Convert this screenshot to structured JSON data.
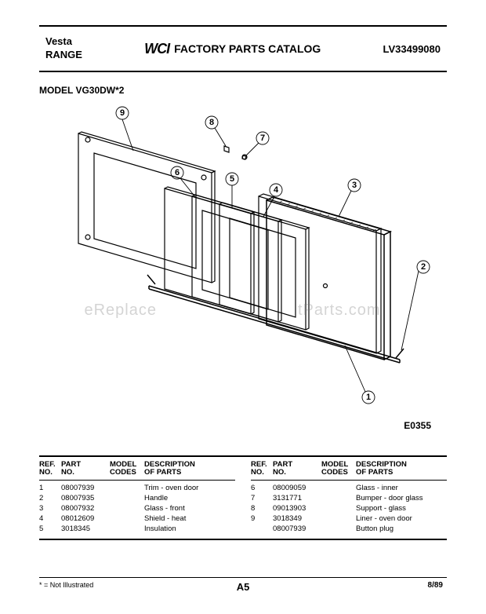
{
  "header": {
    "brand": "Vesta",
    "product": "RANGE",
    "logo": "WCI",
    "catalog_title": "FACTORY PARTS CATALOG",
    "doc_number": "LV33499080"
  },
  "model_label": "MODEL VG30DW*2",
  "drawing_code": "E0355",
  "watermark_left": "eReplace",
  "watermark_right": "tParts.com",
  "callouts": {
    "c1": "1",
    "c2": "2",
    "c3": "3",
    "c4": "4",
    "c5": "5",
    "c6": "6",
    "c7": "7",
    "c8": "8",
    "c9": "9"
  },
  "table_headers": {
    "ref1": "REF.",
    "ref2": "NO.",
    "part1": "PART",
    "part2": "NO.",
    "model1": "MODEL",
    "model2": "CODES",
    "desc1": "DESCRIPTION",
    "desc2": "OF PARTS"
  },
  "parts_left": [
    {
      "ref": "1",
      "part": "08007939",
      "model": "",
      "desc": "Trim - oven door"
    },
    {
      "ref": "2",
      "part": "08007935",
      "model": "",
      "desc": "Handle"
    },
    {
      "ref": "3",
      "part": "08007932",
      "model": "",
      "desc": "Glass - front"
    },
    {
      "ref": "4",
      "part": "08012609",
      "model": "",
      "desc": "Shield - heat"
    },
    {
      "ref": "5",
      "part": "3018345",
      "model": "",
      "desc": "Insulation"
    }
  ],
  "parts_right": [
    {
      "ref": "6",
      "part": "08009059",
      "model": "",
      "desc": "Glass - inner"
    },
    {
      "ref": "7",
      "part": "3131771",
      "model": "",
      "desc": "Bumper - door glass"
    },
    {
      "ref": "8",
      "part": "09013903",
      "model": "",
      "desc": "Support - glass"
    },
    {
      "ref": "9",
      "part": "3018349",
      "model": "",
      "desc": "Liner - oven door"
    },
    {
      "ref": "",
      "part": "08007939",
      "model": "",
      "desc": "Button plug"
    }
  ],
  "footnote": "* = Not Illustrated",
  "page_number": "A5",
  "page_date": "8/89",
  "colors": {
    "stroke": "#000000",
    "bg": "#ffffff",
    "watermark": "rgba(120,120,120,0.32)"
  }
}
